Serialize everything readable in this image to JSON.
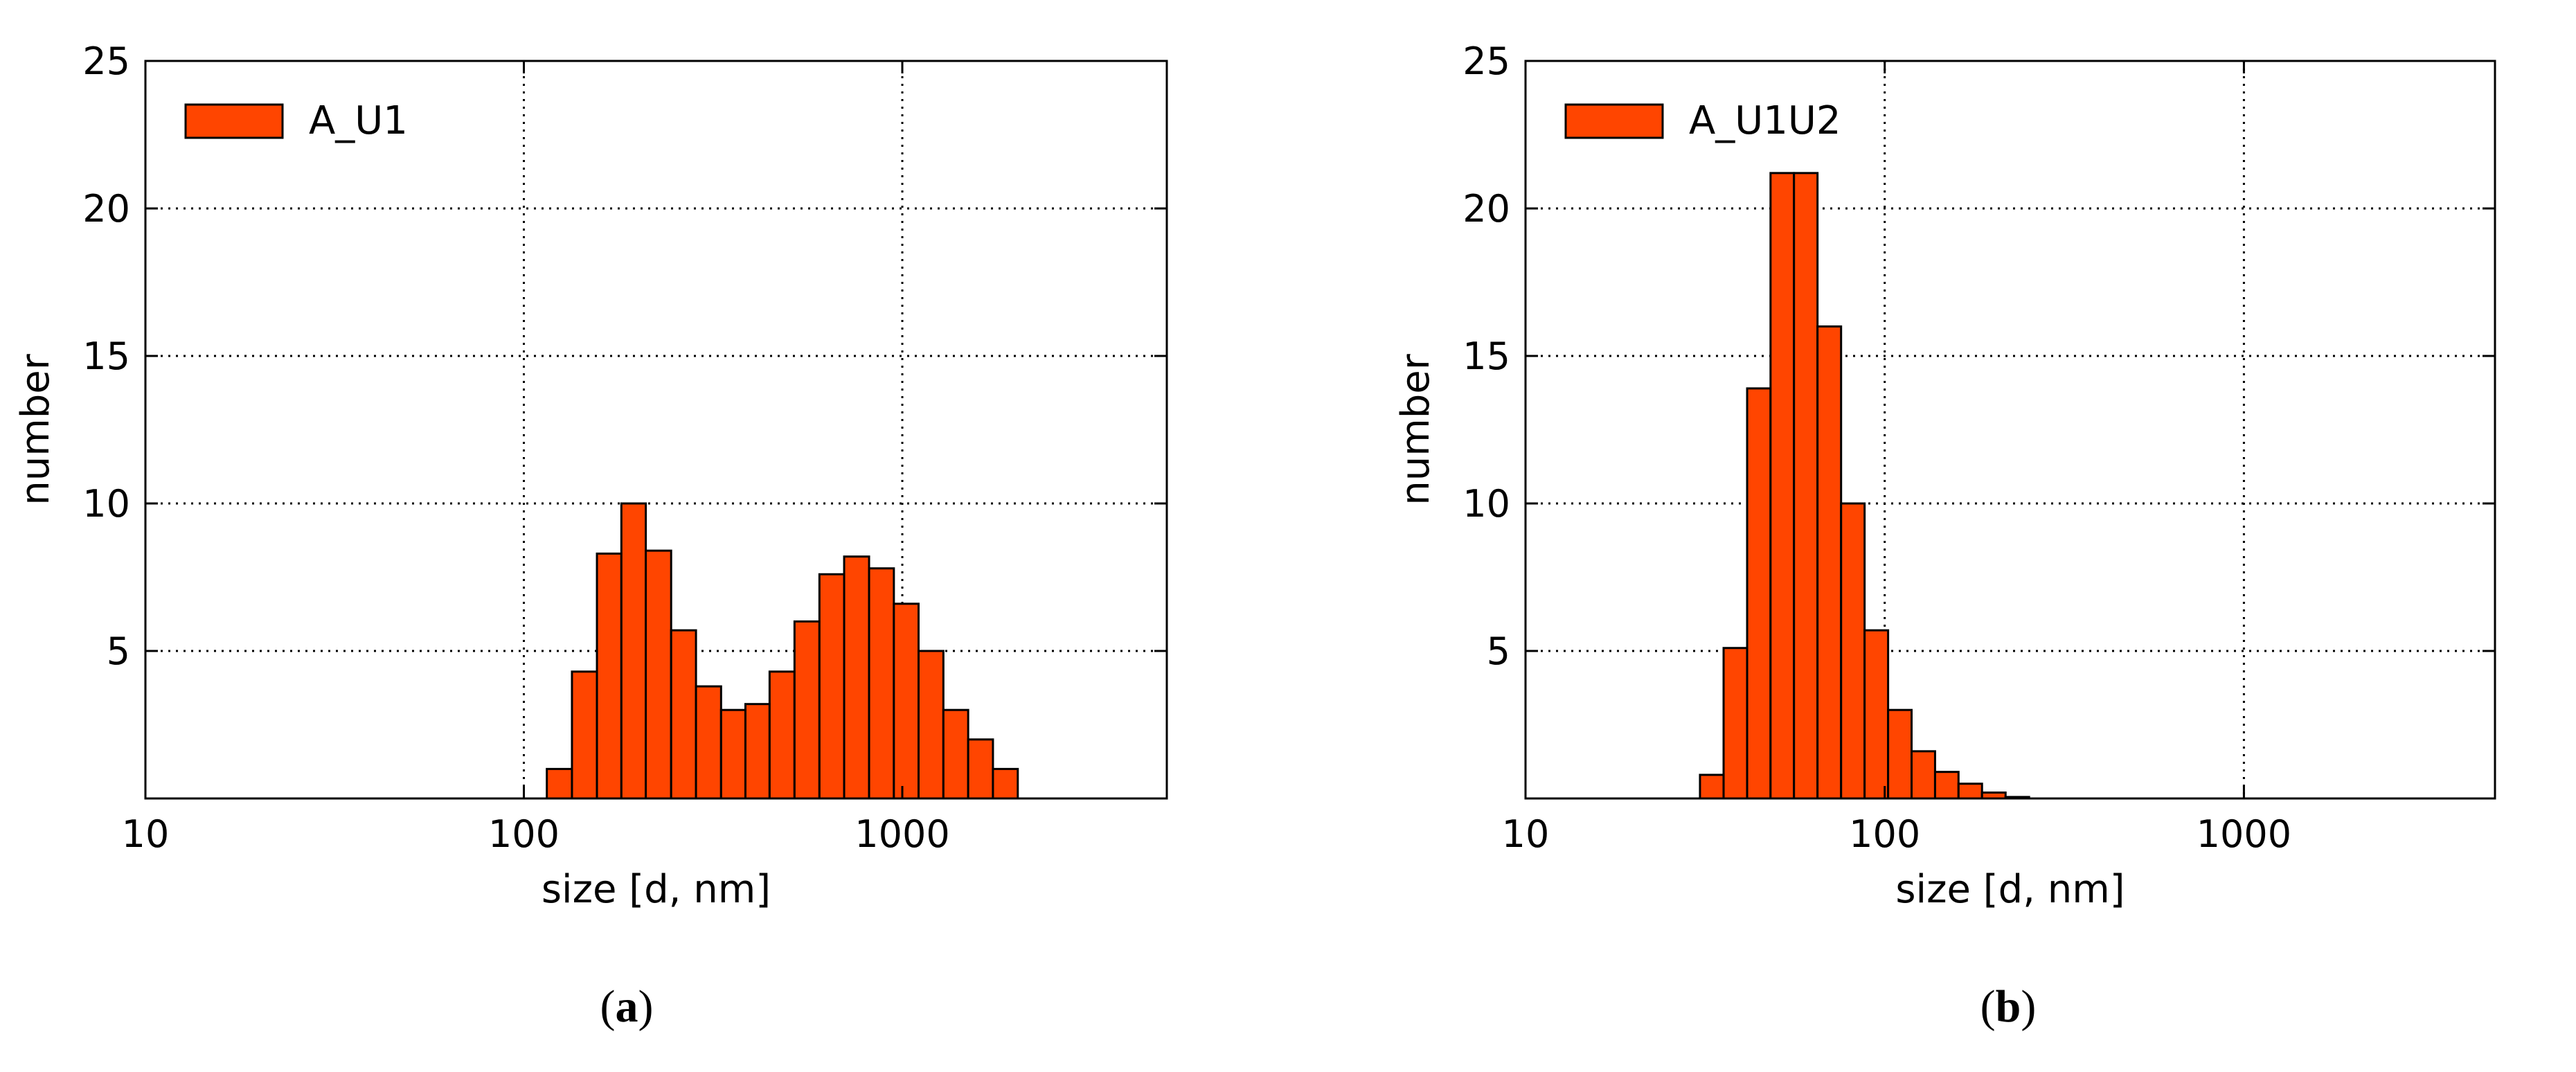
{
  "colors": {
    "bar_fill": "#ff4500",
    "bar_edge": "#000000",
    "grid": "#000000",
    "frame": "#000000"
  },
  "chart_data": [
    {
      "type": "bar",
      "panel_label": "(a)",
      "panel_letter": "a",
      "xlabel": "size [d, nm]",
      "ylabel": "number",
      "x_scale": "log",
      "xlim": [
        10,
        5000
      ],
      "ylim": [
        0,
        25
      ],
      "x_ticks": [
        10,
        100,
        1000
      ],
      "x_tick_labels": [
        "10",
        "100",
        "1000"
      ],
      "y_ticks": [
        5,
        10,
        15,
        20,
        25
      ],
      "y_tick_labels": [
        "5",
        "10",
        "15",
        "20",
        "25"
      ],
      "grid": true,
      "legend_position": "top-left",
      "series": [
        {
          "name": "A_U1",
          "bins": [
            {
              "x0": 115,
              "x1": 134,
              "value": 1.0
            },
            {
              "x0": 134,
              "x1": 156,
              "value": 4.3
            },
            {
              "x0": 156,
              "x1": 181,
              "value": 8.3
            },
            {
              "x0": 181,
              "x1": 210,
              "value": 10.0
            },
            {
              "x0": 210,
              "x1": 245,
              "value": 8.4
            },
            {
              "x0": 245,
              "x1": 285,
              "value": 5.7
            },
            {
              "x0": 285,
              "x1": 332,
              "value": 3.8
            },
            {
              "x0": 332,
              "x1": 385,
              "value": 3.0
            },
            {
              "x0": 385,
              "x1": 446,
              "value": 3.2
            },
            {
              "x0": 446,
              "x1": 519,
              "value": 4.3
            },
            {
              "x0": 519,
              "x1": 604,
              "value": 6.0
            },
            {
              "x0": 604,
              "x1": 702,
              "value": 7.6
            },
            {
              "x0": 702,
              "x1": 817,
              "value": 8.2
            },
            {
              "x0": 817,
              "x1": 950,
              "value": 7.8
            },
            {
              "x0": 950,
              "x1": 1104,
              "value": 6.6
            },
            {
              "x0": 1104,
              "x1": 1284,
              "value": 5.0
            },
            {
              "x0": 1284,
              "x1": 1493,
              "value": 3.0
            },
            {
              "x0": 1493,
              "x1": 1736,
              "value": 2.0
            },
            {
              "x0": 1736,
              "x1": 2019,
              "value": 1.0
            }
          ]
        }
      ]
    },
    {
      "type": "bar",
      "panel_label": "(b)",
      "panel_letter": "b",
      "xlabel": "size [d, nm]",
      "ylabel": "number",
      "x_scale": "log",
      "xlim": [
        10,
        5000
      ],
      "ylim": [
        0,
        25
      ],
      "x_ticks": [
        10,
        100,
        1000
      ],
      "x_tick_labels": [
        "10",
        "100",
        "1000"
      ],
      "y_ticks": [
        5,
        10,
        15,
        20,
        25
      ],
      "y_tick_labels": [
        "5",
        "10",
        "15",
        "20",
        "25"
      ],
      "grid": true,
      "legend_position": "top-left",
      "series": [
        {
          "name": "A_U1U2",
          "bins": [
            {
              "x0": 30.6,
              "x1": 35.6,
              "value": 0.8
            },
            {
              "x0": 35.6,
              "x1": 41.4,
              "value": 5.1
            },
            {
              "x0": 41.4,
              "x1": 48.1,
              "value": 13.9
            },
            {
              "x0": 48.1,
              "x1": 55.9,
              "value": 21.2
            },
            {
              "x0": 55.9,
              "x1": 65.0,
              "value": 21.2
            },
            {
              "x0": 65.0,
              "x1": 75.6,
              "value": 16.0
            },
            {
              "x0": 75.6,
              "x1": 87.9,
              "value": 10.0
            },
            {
              "x0": 87.9,
              "x1": 102.2,
              "value": 5.7
            },
            {
              "x0": 102.2,
              "x1": 118.8,
              "value": 3.0
            },
            {
              "x0": 118.8,
              "x1": 138.1,
              "value": 1.6
            },
            {
              "x0": 138.1,
              "x1": 160.5,
              "value": 0.9
            },
            {
              "x0": 160.5,
              "x1": 186.6,
              "value": 0.5
            },
            {
              "x0": 186.6,
              "x1": 217.0,
              "value": 0.2
            },
            {
              "x0": 217.0,
              "x1": 252.3,
              "value": 0.05
            }
          ]
        }
      ]
    }
  ]
}
